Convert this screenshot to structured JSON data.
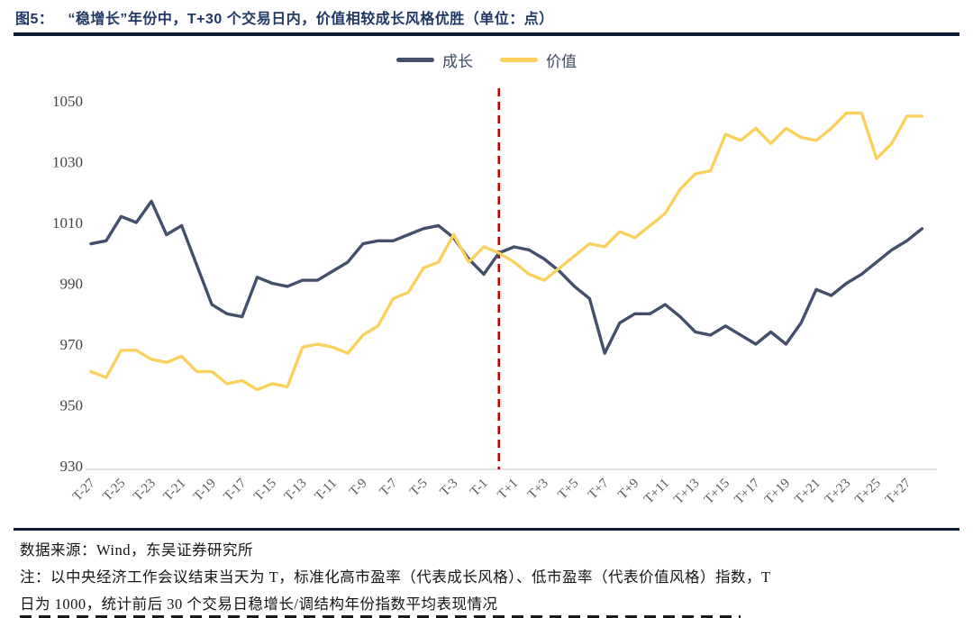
{
  "figure": {
    "title_prefix": "图5：",
    "title": "“稳增长”年份中，T+30 个交易日内，价值相较成长风格优胜（单位：点）"
  },
  "legend": {
    "items": [
      {
        "label": "成长",
        "color": "#44506b"
      },
      {
        "label": "价值",
        "color": "#fbd15e"
      }
    ]
  },
  "chart_data": {
    "type": "line",
    "title": "",
    "xlabel": "",
    "ylabel": "",
    "ylim": [
      930,
      1050
    ],
    "yticks": [
      930,
      950,
      970,
      990,
      1010,
      1030,
      1050
    ],
    "grid": false,
    "legend_position": "top-center",
    "categories": [
      "T-27",
      "T-26",
      "T-25",
      "T-24",
      "T-23",
      "T-22",
      "T-21",
      "T-20",
      "T-19",
      "T-18",
      "T-17",
      "T-16",
      "T-15",
      "T-14",
      "T-13",
      "T-12",
      "T-11",
      "T-10",
      "T-9",
      "T-8",
      "T-7",
      "T-6",
      "T-5",
      "T-4",
      "T-3",
      "T-2",
      "T-1",
      "T",
      "T+1",
      "T+2",
      "T+3",
      "T+4",
      "T+5",
      "T+6",
      "T+7",
      "T+8",
      "T+9",
      "T+10",
      "T+11",
      "T+12",
      "T+13",
      "T+14",
      "T+15",
      "T+16",
      "T+17",
      "T+18",
      "T+19",
      "T+20",
      "T+21",
      "T+22",
      "T+23",
      "T+24",
      "T+25",
      "T+26",
      "T+27",
      "T+28"
    ],
    "x_tick_labels": [
      "T-27",
      "T-25",
      "T-23",
      "T-21",
      "T-19",
      "T-17",
      "T-15",
      "T-13",
      "T-11",
      "T-9",
      "T-7",
      "T-5",
      "T-3",
      "T-1",
      "T+1",
      "T+3",
      "T+5",
      "T+7",
      "T+9",
      "T+11",
      "T+13",
      "T+15",
      "T+17",
      "T+19",
      "T+21",
      "T+23",
      "T+25",
      "T+27"
    ],
    "series": [
      {
        "name": "成长",
        "color": "#44506b",
        "values": [
          1003,
          1004,
          1012,
          1010,
          1017,
          1006,
          1009,
          996,
          983,
          980,
          979,
          992,
          990,
          989,
          991,
          991,
          994,
          997,
          1003,
          1004,
          1004,
          1006,
          1008,
          1009,
          1005,
          998,
          993,
          1000,
          1002,
          1001,
          998,
          994,
          989,
          985,
          967,
          977,
          980,
          980,
          983,
          979,
          974,
          973,
          976,
          973,
          970,
          974,
          970,
          977,
          988,
          986,
          990,
          993,
          997,
          1001,
          1004,
          1008
        ]
      },
      {
        "name": "价值",
        "color": "#fbd15e",
        "values": [
          961,
          959,
          968,
          968,
          965,
          964,
          966,
          961,
          961,
          957,
          958,
          955,
          957,
          956,
          969,
          970,
          969,
          967,
          973,
          976,
          985,
          987,
          995,
          997,
          1006,
          997,
          1002,
          1000,
          997,
          993,
          991,
          995,
          999,
          1003,
          1002,
          1007,
          1005,
          1009,
          1013,
          1021,
          1026,
          1027,
          1039,
          1037,
          1041,
          1036,
          1041,
          1038,
          1037,
          1041,
          1046,
          1046,
          1031,
          1036,
          1045,
          1045
        ]
      }
    ],
    "vline": {
      "category": "T",
      "color": "#c00000",
      "style": "dashed"
    }
  },
  "footer": {
    "source": "数据来源：Wind，东吴证券研究所",
    "note_line1": "注：以中央经济工作会议结束当天为 T，标准化高市盈率（代表成长风格）、低市盈率（代表价值风格）指数，T",
    "note_line2": "日为 1000，统计前后 30 个交易日稳增长/调结构年份指数平均表现情况"
  }
}
